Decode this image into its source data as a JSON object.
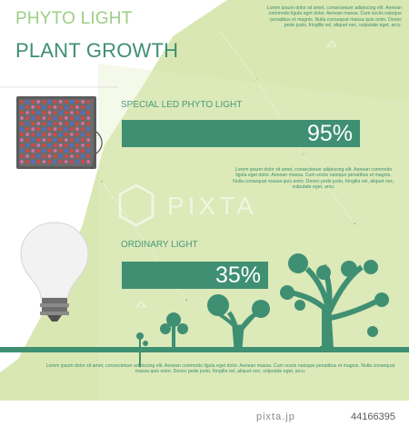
{
  "colors": {
    "background": "#d9e7b2",
    "accent": "#3f8f73",
    "title_light": "#9ccf86",
    "title_dark": "#3f8f73",
    "tree": "#4a9a7c"
  },
  "title": {
    "line1": "PHYTO LIGHT",
    "line2": "PLANT GROWTH"
  },
  "top_paragraph": "Lorem ipsum dolor sit amet, consectetuer adipiscing elit. Aenean commodo ligula eget dolor. Aenean massa. Cum sociis natoque penatibus et magnis. Nulla consequat massa quis enim. Donec pede justo, fringilla vel, aliquet nec, vulputate eget, arcu.",
  "led": {
    "label": "SPECIAL LED PHYTO LIGHT",
    "value_text": "95%",
    "value": 95
  },
  "middle_paragraph": "Lorem ipsum dolor sit amet, consectetuer adipiscing elit. Aenean commodo ligula eget dolor. Aenean massa. Cum sociis natoque penatibus et magnis. Nulla consequat massa quis enim. Donec pede justo, fringilla vel, aliquet nec, vulputate eget, arcu.",
  "ordinary": {
    "label": "ORDINARY LIGHT",
    "value_text": "35%",
    "value": 35
  },
  "bottom_paragraph": "Lorem ipsum dolor sit amet, consectetuer adipiscing elit. Aenean commodo ligula eget dolor. Aenean massa. Cum sociis natoque penatibus et magnis. Nulla consequat massa quis enim. Donec pede justo, fringilla vel, aliquet nec, vulputate eget, arcu.",
  "watermark": "PIXTA",
  "footer": {
    "logo": "pixta.jp",
    "id": "44166395"
  }
}
